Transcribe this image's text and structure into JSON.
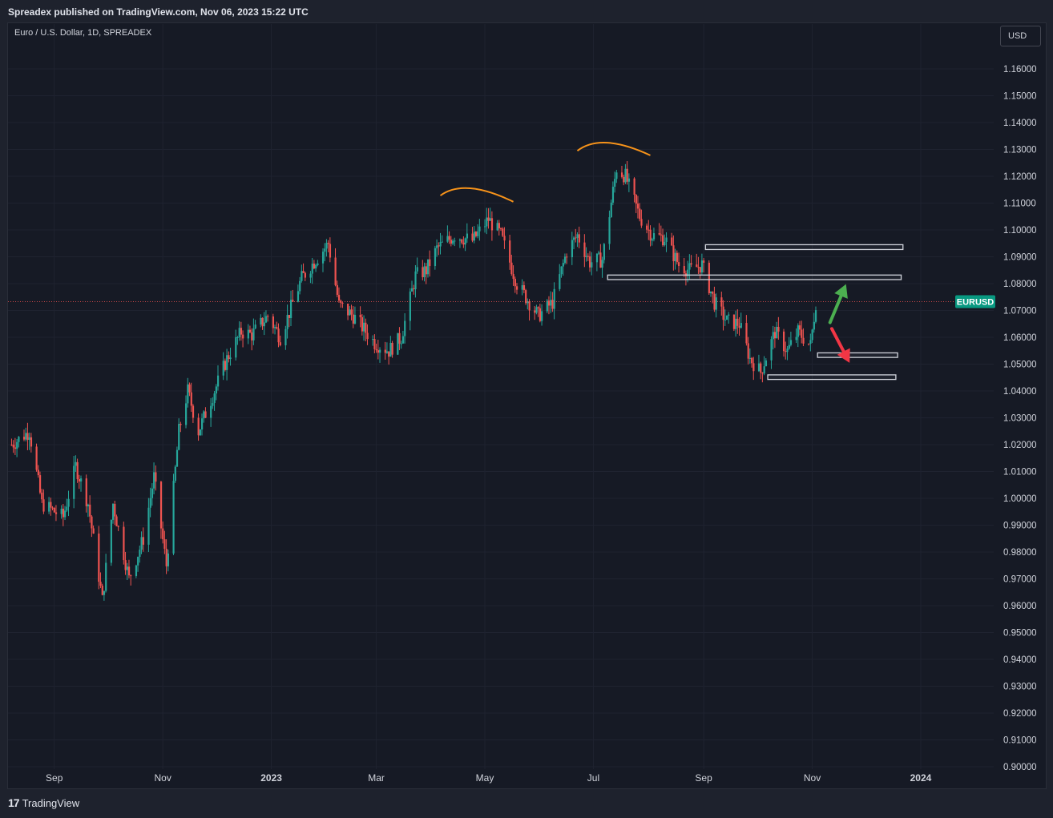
{
  "header": {
    "publisher_line": "Spreadex published on TradingView.com, Nov 06, 2023 15:22 UTC"
  },
  "chart_header": {
    "symbol_line": "Euro / U.S. Dollar, 1D, SPREADEX",
    "currency_button": "USD"
  },
  "footer": {
    "brand": "TradingView",
    "brand_mark": "17"
  },
  "colors": {
    "background": "#161a25",
    "up": "#26a69a",
    "down": "#ef5350",
    "arc": "#f7931a",
    "arrow_up": "#4caf50",
    "arrow_down": "#f23645",
    "zone": "#d1d4dc"
  },
  "chart_data": {
    "type": "candlestick",
    "symbol": "EURUSD",
    "interval": "1D",
    "ylim": [
      0.9,
      1.165
    ],
    "y_ticks": [
      "1.16000",
      "1.15000",
      "1.14000",
      "1.13000",
      "1.12000",
      "1.11000",
      "1.10000",
      "1.09000",
      "1.08000",
      "1.07000",
      "1.06000",
      "1.05000",
      "1.04000",
      "1.03000",
      "1.02000",
      "1.01000",
      "1.00000",
      "0.99000",
      "0.98000",
      "0.97000",
      "0.96000",
      "0.95000",
      "0.94000",
      "0.93000",
      "0.92000",
      "0.91000",
      "0.90000"
    ],
    "x_ticks": [
      {
        "label": "Sep",
        "date": "2022-09-01",
        "bold": false
      },
      {
        "label": "Nov",
        "date": "2022-11-01",
        "bold": false
      },
      {
        "label": "2023",
        "date": "2023-01-01",
        "bold": true
      },
      {
        "label": "Mar",
        "date": "2023-03-01",
        "bold": false
      },
      {
        "label": "May",
        "date": "2023-05-01",
        "bold": false
      },
      {
        "label": "Jul",
        "date": "2023-07-01",
        "bold": false
      },
      {
        "label": "Sep",
        "date": "2023-09-01",
        "bold": false
      },
      {
        "label": "Nov",
        "date": "2023-11-01",
        "bold": false
      },
      {
        "label": "2024",
        "date": "2024-01-01",
        "bold": true
      }
    ],
    "x_range": [
      "2022-08-06",
      "2024-02-11"
    ],
    "last_price": 1.0733,
    "last_price_label": "EURUSD",
    "price_path": [
      [
        "2022-08-08",
        1.02
      ],
      [
        "2022-08-18",
        1.025
      ],
      [
        "2022-08-25",
        0.998
      ],
      [
        "2022-09-06",
        0.993
      ],
      [
        "2022-09-13",
        1.012
      ],
      [
        "2022-09-20",
        0.998
      ],
      [
        "2022-09-28",
        0.962
      ],
      [
        "2022-10-04",
        0.998
      ],
      [
        "2022-10-13",
        0.97
      ],
      [
        "2022-10-21",
        0.985
      ],
      [
        "2022-10-27",
        1.008
      ],
      [
        "2022-11-03",
        0.975
      ],
      [
        "2022-11-10",
        1.025
      ],
      [
        "2022-11-15",
        1.04
      ],
      [
        "2022-11-21",
        1.025
      ],
      [
        "2022-11-30",
        1.04
      ],
      [
        "2022-12-07",
        1.052
      ],
      [
        "2022-12-15",
        1.062
      ],
      [
        "2022-12-21",
        1.061
      ],
      [
        "2022-12-30",
        1.068
      ],
      [
        "2023-01-06",
        1.06
      ],
      [
        "2023-01-18",
        1.082
      ],
      [
        "2023-01-26",
        1.089
      ],
      [
        "2023-02-02",
        1.095
      ],
      [
        "2023-02-08",
        1.072
      ],
      [
        "2023-02-16",
        1.068
      ],
      [
        "2023-02-28",
        1.058
      ],
      [
        "2023-03-08",
        1.055
      ],
      [
        "2023-03-15",
        1.06
      ],
      [
        "2023-03-23",
        1.083
      ],
      [
        "2023-03-29",
        1.085
      ],
      [
        "2023-04-04",
        1.093
      ],
      [
        "2023-04-14",
        1.098
      ],
      [
        "2023-04-24",
        1.096
      ],
      [
        "2023-05-03",
        1.104
      ],
      [
        "2023-05-10",
        1.098
      ],
      [
        "2023-05-19",
        1.08
      ],
      [
        "2023-05-31",
        1.068
      ],
      [
        "2023-06-08",
        1.073
      ],
      [
        "2023-06-16",
        1.092
      ],
      [
        "2023-06-22",
        1.098
      ],
      [
        "2023-06-29",
        1.088
      ],
      [
        "2023-07-06",
        1.089
      ],
      [
        "2023-07-14",
        1.123
      ],
      [
        "2023-07-19",
        1.12
      ],
      [
        "2023-07-27",
        1.105
      ],
      [
        "2023-08-03",
        1.098
      ],
      [
        "2023-08-10",
        1.097
      ],
      [
        "2023-08-18",
        1.087
      ],
      [
        "2023-08-24",
        1.085
      ],
      [
        "2023-08-31",
        1.087
      ],
      [
        "2023-09-07",
        1.073
      ],
      [
        "2023-09-14",
        1.066
      ],
      [
        "2023-09-21",
        1.065
      ],
      [
        "2023-09-27",
        1.052
      ],
      [
        "2023-10-03",
        1.047
      ],
      [
        "2023-10-11",
        1.062
      ],
      [
        "2023-10-18",
        1.055
      ],
      [
        "2023-10-24",
        1.062
      ],
      [
        "2023-10-31",
        1.057
      ],
      [
        "2023-11-03",
        1.073
      ],
      [
        "2023-11-06",
        1.0733
      ]
    ],
    "annotations": {
      "arcs": [
        {
          "name": "left-shoulder-arc",
          "start": [
            "2023-04-06",
            1.1128
          ],
          "peak": [
            "2023-04-23",
            1.1155
          ],
          "end": [
            "2023-05-17",
            1.1105
          ]
        },
        {
          "name": "head-arc",
          "start": [
            "2023-06-22",
            1.1295
          ],
          "peak": [
            "2023-07-09",
            1.1325
          ],
          "end": [
            "2023-08-02",
            1.1278
          ]
        }
      ],
      "zones": [
        {
          "name": "resistance-zone-upper",
          "start": "2023-09-02",
          "end": "2023-12-22",
          "high": 1.0945,
          "low": 1.0927
        },
        {
          "name": "resistance-zone-lower",
          "start": "2023-07-09",
          "end": "2023-12-21",
          "high": 1.0832,
          "low": 1.0815
        },
        {
          "name": "support-zone-upper",
          "start": "2023-11-04",
          "end": "2023-12-19",
          "high": 1.0542,
          "low": 1.0525
        },
        {
          "name": "support-zone-lower",
          "start": "2023-10-07",
          "end": "2023-12-18",
          "high": 1.046,
          "low": 1.0443
        }
      ],
      "arrows": [
        {
          "name": "bullish-arrow",
          "from": [
            "2023-11-11",
            1.0655
          ],
          "to": [
            "2023-11-20",
            1.0798
          ],
          "direction": "up"
        },
        {
          "name": "bearish-arrow",
          "from": [
            "2023-11-12",
            1.0632
          ],
          "to": [
            "2023-11-22",
            1.0505
          ],
          "direction": "down"
        }
      ]
    }
  }
}
